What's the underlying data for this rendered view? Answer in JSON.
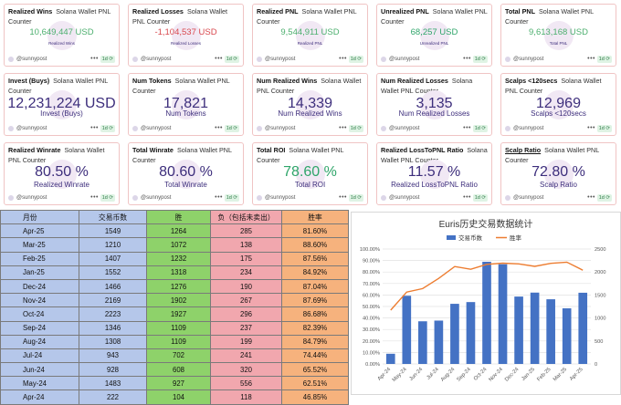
{
  "cards": [
    {
      "title": "Realized Wins",
      "source": "Solana Wallet PNL Counter",
      "value": "10,649,447 USD",
      "sub": "Realized Wins",
      "color": "#4caf6e",
      "author": "@sunnypost",
      "period": "1d"
    },
    {
      "title": "Realized Losses",
      "source": "Solana Wallet PNL Counter",
      "value": "-1,104,537 USD",
      "sub": "Realized Losses",
      "color": "#d9484e",
      "author": "@sunnypost",
      "period": "1d"
    },
    {
      "title": "Realized PNL",
      "source": "Solana Wallet PNL Counter",
      "value": "9,544,911 USD",
      "sub": "Realized PNL",
      "color": "#4caf6e",
      "author": "@sunnypost",
      "period": "1d"
    },
    {
      "title": "Unrealized PNL",
      "source": "Solana Wallet PNL Counter",
      "value": "68,257 USD",
      "sub": "Unrealized PNL",
      "color": "#2fa56a",
      "author": "@sunnypost",
      "period": "1d"
    },
    {
      "title": "Total PNL",
      "source": "Solana Wallet PNL Counter",
      "value": "9,613,168 USD",
      "sub": "Total PNL",
      "color": "#4caf6e",
      "author": "@sunnypost",
      "period": "1d"
    },
    {
      "title": "Invest (Buys)",
      "source": "Solana Wallet PNL Counter",
      "value": "12,231,224 USD",
      "sub": "Invest (Buys)",
      "color": "#3d2e7c",
      "author": "@sunnypost",
      "period": "1d"
    },
    {
      "title": "Num Tokens",
      "source": "Solana Wallet PNL Counter",
      "value": "17,821",
      "sub": "Num Tokens",
      "color": "#3d2e7c",
      "author": "@sunnypost",
      "period": "1d"
    },
    {
      "title": "Num Realized Wins",
      "source": "Solana Wallet PNL Counter",
      "value": "14,339",
      "sub": "Num Realized Wins",
      "color": "#3d2e7c",
      "author": "@sunnypost",
      "period": "1d"
    },
    {
      "title": "Num Realized Losses",
      "source": "Solana Wallet PNL Counter",
      "value": "3,135",
      "sub": "Num Realized Losses",
      "color": "#3d2e7c",
      "author": "@sunnypost",
      "period": "1d"
    },
    {
      "title": "Scalps <120secs",
      "source": "Solana Wallet PNL Counter",
      "value": "12,969",
      "sub": "Scalps <120secs",
      "color": "#3d2e7c",
      "author": "@sunnypost",
      "period": "1d"
    },
    {
      "title": "Realized Winrate",
      "source": "Solana Wallet PNL Counter",
      "value": "80.50 %",
      "sub": "Realized Winrate",
      "color": "#3d2e7c",
      "author": "@sunnypost",
      "period": "1d"
    },
    {
      "title": "Total Winrate",
      "source": "Solana Wallet PNL Counter",
      "value": "80.60 %",
      "sub": "Total Winrate",
      "color": "#3d2e7c",
      "author": "@sunnypost",
      "period": "1d"
    },
    {
      "title": "Total ROI",
      "source": "Solana Wallet PNL Counter",
      "value": "78.60 %",
      "sub": "Total ROI",
      "color": "#2fa56a",
      "author": "@sunnypost",
      "period": "1d"
    },
    {
      "title": "Realized LossToPNL Ratio",
      "source": "Solana Wallet PNL Counter",
      "value": "11.57 %",
      "sub": "Realized LossToPNL Ratio",
      "color": "#3d2e7c",
      "author": "@sunnypost",
      "period": "1d"
    },
    {
      "title": "Scalp Ratio",
      "source": "Solana Wallet PNL Counter",
      "value": "72.80 %",
      "sub": "Scalp Ratio",
      "color": "#3d2e7c",
      "author": "@sunnypost",
      "period": "1d"
    }
  ],
  "table": {
    "headers": [
      "月份",
      "交易币数",
      "胜",
      "负（包括未卖出）",
      "胜率"
    ],
    "rows": [
      [
        "Apr-25",
        "1549",
        "1264",
        "285",
        "81.60%"
      ],
      [
        "Mar-25",
        "1210",
        "1072",
        "138",
        "88.60%"
      ],
      [
        "Feb-25",
        "1407",
        "1232",
        "175",
        "87.56%"
      ],
      [
        "Jan-25",
        "1552",
        "1318",
        "234",
        "84.92%"
      ],
      [
        "Dec-24",
        "1466",
        "1276",
        "190",
        "87.04%"
      ],
      [
        "Nov-24",
        "2169",
        "1902",
        "267",
        "87.69%"
      ],
      [
        "Oct-24",
        "2223",
        "1927",
        "296",
        "86.68%"
      ],
      [
        "Sep-24",
        "1346",
        "1109",
        "237",
        "82.39%"
      ],
      [
        "Aug-24",
        "1308",
        "1109",
        "199",
        "84.79%"
      ],
      [
        "Jul-24",
        "943",
        "702",
        "241",
        "74.44%"
      ],
      [
        "Jun-24",
        "928",
        "608",
        "320",
        "65.52%"
      ],
      [
        "May-24",
        "1483",
        "927",
        "556",
        "62.51%"
      ],
      [
        "Apr-24",
        "222",
        "104",
        "118",
        "46.85%"
      ]
    ]
  },
  "chart_data": {
    "type": "bar",
    "title": "Euris历史交易数据统计",
    "categories": [
      "Apr-24",
      "May-24",
      "Jun-24",
      "Jul-24",
      "Aug-24",
      "Sep-24",
      "Oct-24",
      "Nov-24",
      "Dec-24",
      "Jan-25",
      "Feb-25",
      "Mar-25",
      "Apr-25"
    ],
    "series": [
      {
        "name": "交易币数",
        "kind": "bar",
        "axis": "right",
        "color": "#4472c4",
        "values": [
          222,
          1483,
          928,
          943,
          1308,
          1346,
          2223,
          2169,
          1466,
          1552,
          1407,
          1210,
          1549
        ]
      },
      {
        "name": "胜率",
        "kind": "line",
        "axis": "left",
        "color": "#ed7d31",
        "values": [
          46.85,
          62.51,
          65.52,
          74.44,
          84.79,
          82.39,
          86.68,
          87.69,
          87.04,
          84.92,
          87.56,
          88.6,
          81.6
        ]
      }
    ],
    "y_left": {
      "min": 0,
      "max": 100,
      "ticks": [
        "0.00%",
        "10.00%",
        "20.00%",
        "30.00%",
        "40.00%",
        "50.00%",
        "60.00%",
        "70.00%",
        "80.00%",
        "90.00%",
        "100.00%"
      ]
    },
    "y_right": {
      "min": 0,
      "max": 2500,
      "ticks": [
        "0",
        "500",
        "1000",
        "1500",
        "2000",
        "2500"
      ]
    },
    "grid": true,
    "legend": "top"
  }
}
